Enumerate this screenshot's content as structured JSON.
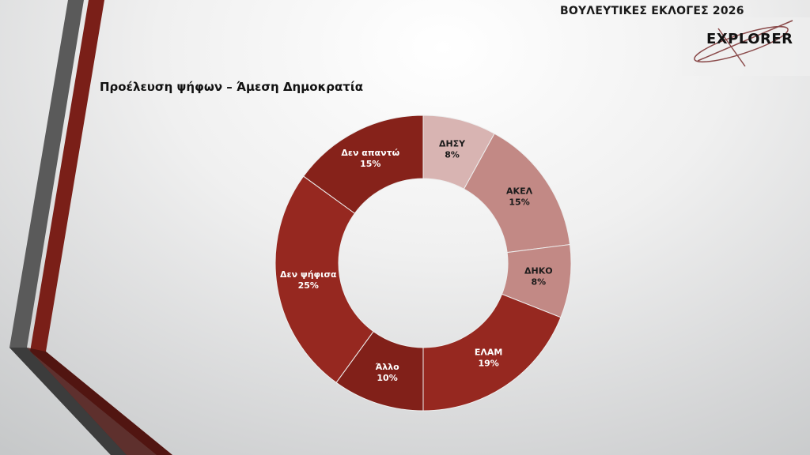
{
  "header": {
    "title": "ΒΟΥΛΕΥΤΙΚΕΣ ΕΚΛΟΓΕΣ 2026",
    "logo_text": "EXPLORER"
  },
  "chart_data": {
    "type": "pie",
    "donut": true,
    "title": "Προέλευση ψήφων – Άμεση Δημοκρατία",
    "categories": [
      "ΔΗΣΥ",
      "ΑΚΕΛ",
      "ΔΗΚΟ",
      "ΕΛΑΜ",
      "Άλλο",
      "Δεν ψήφισα",
      "Δεν απαντώ"
    ],
    "values": [
      8,
      15,
      8,
      19,
      10,
      25,
      15
    ],
    "labels": [
      "8%",
      "15%",
      "8%",
      "19%",
      "10%",
      "25%",
      "15%"
    ],
    "colors": [
      "#d8b4b2",
      "#c28985",
      "#c28985",
      "#962820",
      "#812019",
      "#962820",
      "#86221a"
    ],
    "label_colors": [
      "#1a1a1a",
      "#1a1a1a",
      "#1a1a1a",
      "#ffffff",
      "#ffffff",
      "#ffffff",
      "#ffffff"
    ]
  }
}
